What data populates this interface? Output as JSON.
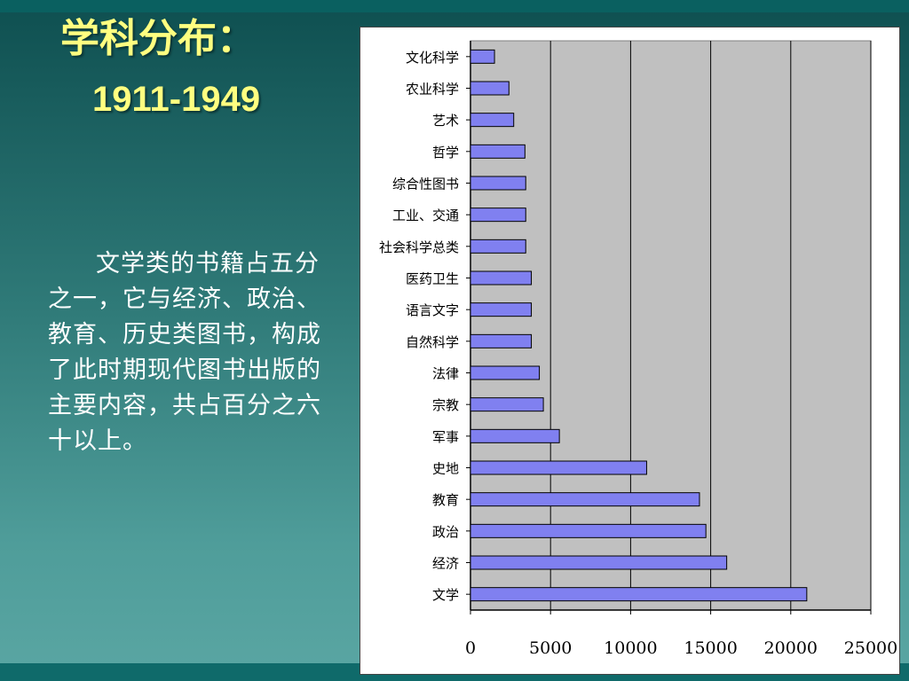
{
  "slide": {
    "title": "学科分布：",
    "subtitle": "1911-1949",
    "body": "文学类的书籍占五分之一，它与经济、政治、教育、历史类图书，构成了此时期现代图书出版的主要内容，共占百分之六十以上。"
  },
  "colors": {
    "bar_fill": "#8080f0",
    "plot_bg": "#c0c0c0",
    "title": "#ffff80",
    "body_text": "#ffffff"
  },
  "chart_data": {
    "type": "bar",
    "orientation": "horizontal",
    "categories": [
      "文化科学",
      "农业科学",
      "艺术",
      "哲学",
      "综合性图书",
      "工业、交通",
      "社会科学总类",
      "医药卫生",
      "语言文字",
      "自然科学",
      "法律",
      "宗教",
      "军事",
      "史地",
      "教育",
      "政治",
      "经济",
      "文学"
    ],
    "values": [
      1500,
      2400,
      2700,
      3400,
      3450,
      3450,
      3450,
      3800,
      3800,
      3800,
      4300,
      4550,
      5550,
      11000,
      14300,
      14700,
      16000,
      21000
    ],
    "xlim": [
      0,
      25000
    ],
    "xticks": [
      "0",
      "5000",
      "10000",
      "15000",
      "20000",
      "25000"
    ],
    "grid": "vertical",
    "legend": "none"
  }
}
